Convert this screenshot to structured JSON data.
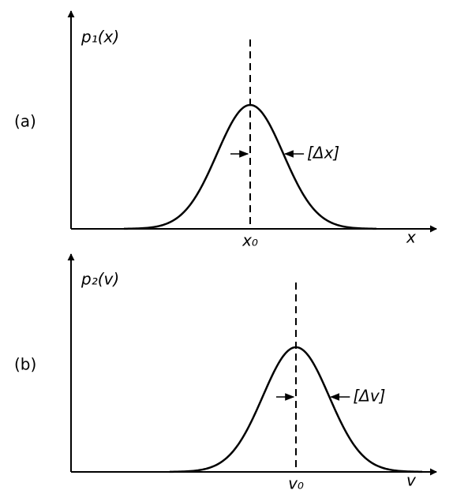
{
  "panels": [
    {
      "label": "(a)",
      "y_axis_label": "p₁(x)",
      "x_axis_label": "x",
      "center_label": "x₀",
      "width_label": "[Δx]"
    },
    {
      "label": "(b)",
      "y_axis_label": "p₂(v)",
      "x_axis_label": "v",
      "center_label": "v₀",
      "width_label": "[Δv]"
    }
  ]
}
